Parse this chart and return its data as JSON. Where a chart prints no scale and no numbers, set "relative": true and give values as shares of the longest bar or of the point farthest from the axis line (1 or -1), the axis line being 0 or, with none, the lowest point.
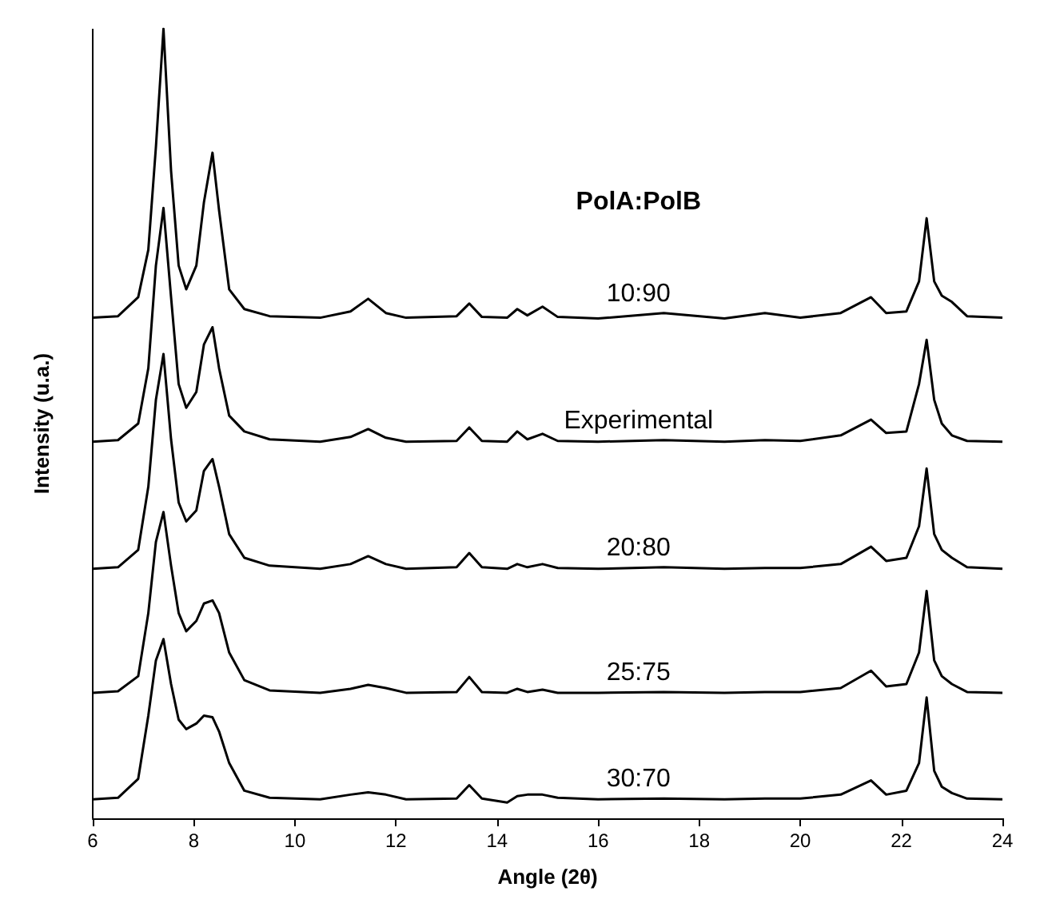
{
  "chart_data": {
    "type": "line",
    "relative": true,
    "xlabel": "Angle (2θ)",
    "ylabel": "Intensity (u.a.)",
    "legend_title": "PolA:PolB",
    "xlim": [
      6,
      24
    ],
    "xticks": [
      6,
      8,
      10,
      12,
      14,
      16,
      18,
      20,
      22,
      24
    ],
    "grid": false,
    "marker": "none",
    "line_style": "solid",
    "x": [
      6,
      6.5,
      6.9,
      7.1,
      7.25,
      7.4,
      7.55,
      7.7,
      7.85,
      8.05,
      8.2,
      8.37,
      8.5,
      8.7,
      9.0,
      9.5,
      10.5,
      11.1,
      11.45,
      11.8,
      12.2,
      13.2,
      13.45,
      13.7,
      14.2,
      14.4,
      14.6,
      14.9,
      15.2,
      16,
      17.3,
      18.5,
      19.3,
      20,
      20.8,
      21.4,
      21.7,
      22.1,
      22.35,
      22.5,
      22.65,
      22.8,
      23.0,
      23.3,
      24
    ],
    "series": [
      {
        "name": "10:90",
        "color": "#000000",
        "values": [
          0.634,
          0.636,
          0.66,
          0.72,
          0.85,
          1.0,
          0.82,
          0.7,
          0.67,
          0.7,
          0.78,
          0.843,
          0.77,
          0.67,
          0.645,
          0.636,
          0.634,
          0.642,
          0.658,
          0.64,
          0.634,
          0.636,
          0.652,
          0.635,
          0.634,
          0.645,
          0.637,
          0.648,
          0.635,
          0.633,
          0.64,
          0.633,
          0.64,
          0.634,
          0.64,
          0.66,
          0.64,
          0.642,
          0.68,
          0.76,
          0.68,
          0.662,
          0.654,
          0.636,
          0.634
        ]
      },
      {
        "name": "Experimental",
        "color": "#000000",
        "values": [
          0.477,
          0.479,
          0.5,
          0.57,
          0.7,
          0.773,
          0.66,
          0.55,
          0.52,
          0.54,
          0.6,
          0.622,
          0.57,
          0.51,
          0.49,
          0.48,
          0.477,
          0.483,
          0.493,
          0.482,
          0.477,
          0.478,
          0.495,
          0.478,
          0.477,
          0.49,
          0.48,
          0.487,
          0.478,
          0.477,
          0.479,
          0.477,
          0.479,
          0.478,
          0.485,
          0.505,
          0.488,
          0.49,
          0.55,
          0.606,
          0.53,
          0.5,
          0.485,
          0.478,
          0.477
        ]
      },
      {
        "name": "20:80",
        "color": "#000000",
        "values": [
          0.316,
          0.318,
          0.34,
          0.42,
          0.53,
          0.588,
          0.48,
          0.4,
          0.376,
          0.39,
          0.44,
          0.455,
          0.42,
          0.36,
          0.33,
          0.32,
          0.316,
          0.322,
          0.332,
          0.322,
          0.316,
          0.318,
          0.336,
          0.318,
          0.316,
          0.322,
          0.318,
          0.322,
          0.317,
          0.316,
          0.318,
          0.316,
          0.317,
          0.317,
          0.322,
          0.344,
          0.326,
          0.33,
          0.37,
          0.443,
          0.36,
          0.34,
          0.33,
          0.318,
          0.316
        ]
      },
      {
        "name": "25:75",
        "color": "#000000",
        "values": [
          0.159,
          0.161,
          0.18,
          0.26,
          0.35,
          0.388,
          0.32,
          0.26,
          0.237,
          0.25,
          0.272,
          0.276,
          0.26,
          0.21,
          0.175,
          0.162,
          0.159,
          0.164,
          0.169,
          0.165,
          0.159,
          0.16,
          0.179,
          0.16,
          0.159,
          0.164,
          0.16,
          0.163,
          0.159,
          0.159,
          0.16,
          0.159,
          0.16,
          0.16,
          0.165,
          0.187,
          0.167,
          0.17,
          0.21,
          0.288,
          0.2,
          0.18,
          0.17,
          0.16,
          0.159
        ]
      },
      {
        "name": "30:70",
        "color": "#000000",
        "values": [
          0.024,
          0.026,
          0.05,
          0.13,
          0.2,
          0.227,
          0.17,
          0.125,
          0.113,
          0.12,
          0.13,
          0.128,
          0.11,
          0.07,
          0.035,
          0.026,
          0.024,
          0.03,
          0.033,
          0.03,
          0.024,
          0.025,
          0.042,
          0.025,
          0.02,
          0.028,
          0.03,
          0.03,
          0.026,
          0.024,
          0.025,
          0.024,
          0.025,
          0.025,
          0.03,
          0.048,
          0.03,
          0.035,
          0.07,
          0.153,
          0.06,
          0.04,
          0.032,
          0.025,
          0.024
        ]
      }
    ]
  }
}
